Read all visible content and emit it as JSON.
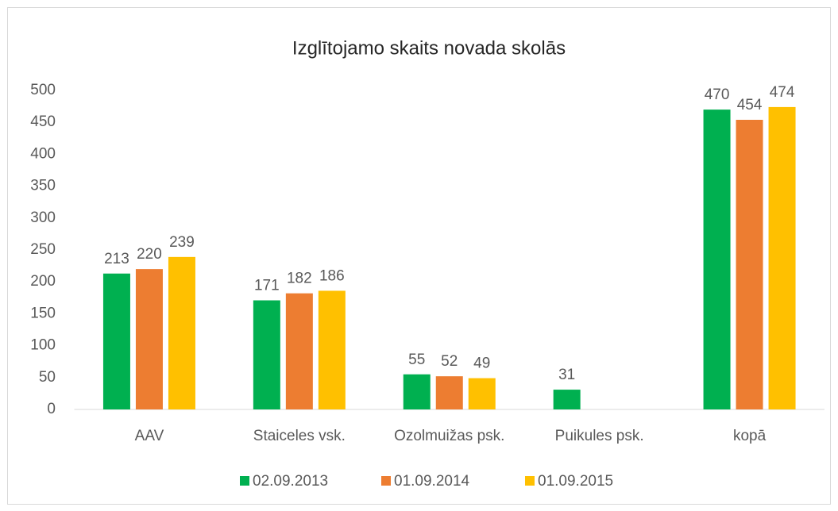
{
  "chart_data": {
    "type": "bar",
    "title": "Izglītojamo skaits novada skolās",
    "categories": [
      "AAV",
      "Staiceles vsk.",
      "Ozolmuižas psk.",
      "Puikules psk.",
      "kopā"
    ],
    "series": [
      {
        "name": "02.09.2013",
        "color": "#00b050",
        "values": [
          213,
          171,
          55,
          31,
          470
        ]
      },
      {
        "name": "01.09.2014",
        "color": "#ed7d31",
        "values": [
          220,
          182,
          52,
          null,
          454
        ]
      },
      {
        "name": "01.09.2015",
        "color": "#ffc000",
        "values": [
          239,
          186,
          49,
          null,
          474
        ]
      }
    ],
    "ylim": [
      0,
      500
    ],
    "yticks": [
      0,
      50,
      100,
      150,
      200,
      250,
      300,
      350,
      400,
      450,
      500
    ],
    "grid": false,
    "legend": "bottom"
  }
}
